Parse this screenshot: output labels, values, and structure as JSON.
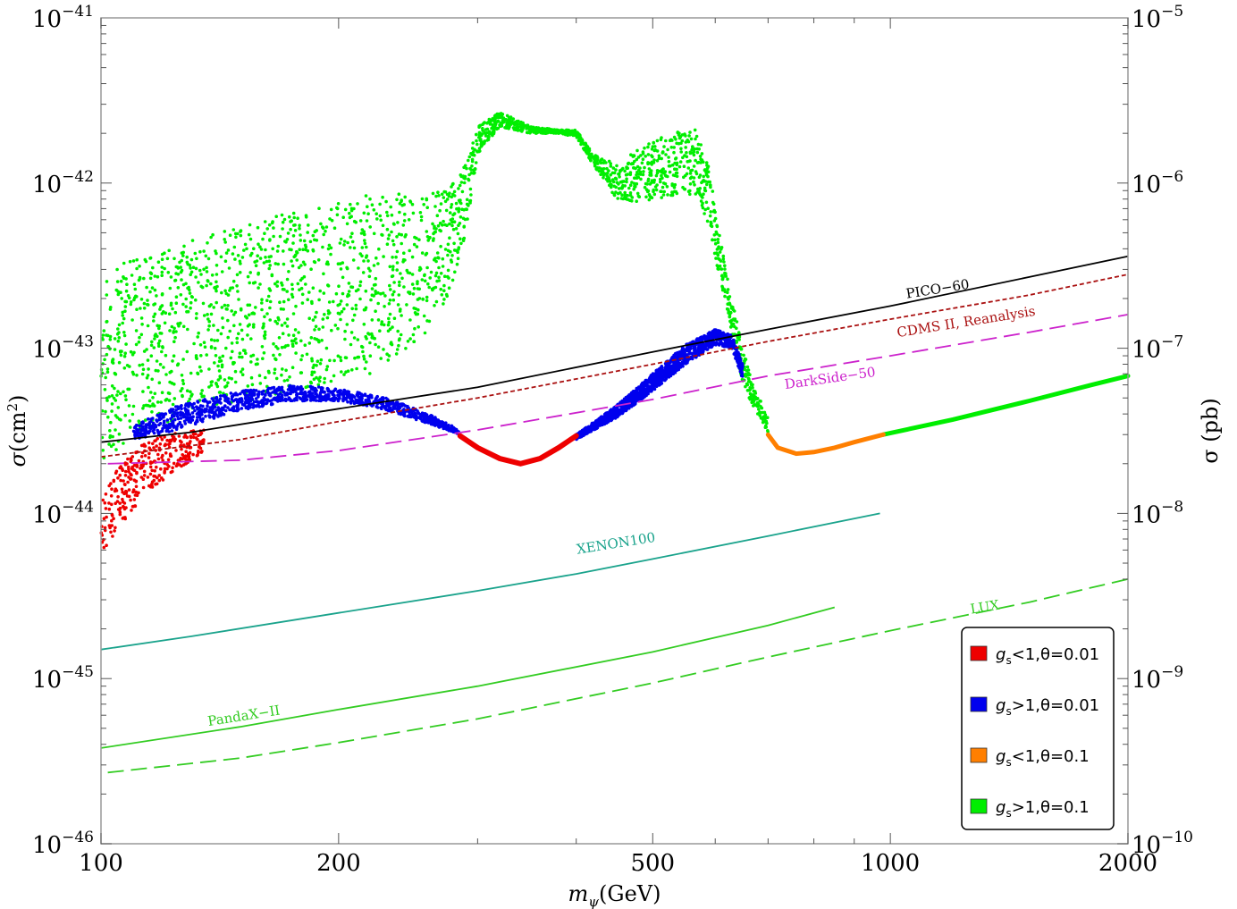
{
  "chart_data": {
    "type": "scatter",
    "title": "",
    "xlabel": {
      "main": "m",
      "sub": "ψ",
      "rest": "(GeV)"
    },
    "ylabel_left": {
      "main": "σ",
      "rest": "(cm",
      "sup": "2",
      "end": ")"
    },
    "ylabel_right": "σ (pb)",
    "x_scale": "log",
    "y_scale": "log",
    "xlim": [
      100,
      2000
    ],
    "ylim": [
      1e-46,
      1e-41
    ],
    "ylim_right": [
      1e-10,
      1e-05
    ],
    "x_ticks": [
      {
        "value": 100,
        "label": "100"
      },
      {
        "value": 200,
        "label": "200"
      },
      {
        "value": 500,
        "label": "500"
      },
      {
        "value": 1000,
        "label": "1000"
      },
      {
        "value": 2000,
        "label": "2000"
      }
    ],
    "y_ticks_left": [
      {
        "value": 1e-46,
        "base": "10",
        "exp": "−46"
      },
      {
        "value": 1e-45,
        "base": "10",
        "exp": "−45"
      },
      {
        "value": 1e-44,
        "base": "10",
        "exp": "−44"
      },
      {
        "value": 1e-43,
        "base": "10",
        "exp": "−43"
      },
      {
        "value": 1e-42,
        "base": "10",
        "exp": "−42"
      },
      {
        "value": 1e-41,
        "base": "10",
        "exp": "−41"
      }
    ],
    "y_ticks_right": [
      {
        "value": 1e-10,
        "base": "10",
        "exp": "−10"
      },
      {
        "value": 1e-09,
        "base": "10",
        "exp": "−9"
      },
      {
        "value": 1e-08,
        "base": "10",
        "exp": "−8"
      },
      {
        "value": 1e-07,
        "base": "10",
        "exp": "−7"
      },
      {
        "value": 1e-06,
        "base": "10",
        "exp": "−6"
      },
      {
        "value": 1e-05,
        "base": "10",
        "exp": "−5"
      }
    ],
    "grid": false,
    "legend_position": "bottom-right",
    "legend": [
      {
        "key": "red",
        "color": "#ee0000",
        "g": "g",
        "sub": "s",
        "text": "<1,θ=0.01"
      },
      {
        "key": "blue",
        "color": "#0000ee",
        "g": "g",
        "sub": "s",
        "text": ">1,θ=0.01"
      },
      {
        "key": "orange",
        "color": "#ff7f00",
        "g": "g",
        "sub": "s",
        "text": "<1,θ=0.1"
      },
      {
        "key": "green",
        "color": "#00ee00",
        "g": "g",
        "sub": "s",
        "text": ">1,θ=0.1"
      }
    ],
    "limit_curves": [
      {
        "name": "PICO−60",
        "color": "#000000",
        "dash": "solid",
        "x": [
          100,
          130,
          200,
          300,
          500,
          700,
          1000,
          1500,
          2000
        ],
        "y": [
          2.7e-44,
          3.1e-44,
          4.3e-44,
          5.8e-44,
          9.5e-44,
          1.3e-43,
          1.8e-43,
          2.7e-43,
          3.6e-43
        ],
        "label_at": [
          1150,
          2.15e-43
        ],
        "label_angle": -9
      },
      {
        "name": "CDMS II, Reanalysis",
        "color": "#aa1111",
        "dash": "dashed-short",
        "x": [
          100,
          150,
          200,
          300,
          500,
          700,
          1000,
          1500,
          2000
        ],
        "y": [
          2.2e-44,
          2.8e-44,
          3.6e-44,
          5e-44,
          8e-44,
          1.1e-43,
          1.5e-43,
          2.1e-43,
          2.8e-43
        ],
        "label_at": [
          1250,
          1.36e-43
        ],
        "label_angle": -9
      },
      {
        "name": "DarkSide−50",
        "color": "#cc22cc",
        "dash": "dashed-long",
        "x": [
          102,
          150,
          200,
          300,
          500,
          700,
          1000,
          1500,
          2000
        ],
        "y": [
          2e-44,
          2.1e-44,
          2.4e-44,
          3.2e-44,
          4.9e-44,
          6.8e-44,
          9e-44,
          1.25e-43,
          1.6e-43
        ],
        "label_at": [
          840,
          6.2e-44
        ],
        "label_angle": -8
      },
      {
        "name": "XENON100",
        "color": "#1aa38c",
        "dash": "solid",
        "x": [
          100,
          130,
          200,
          300,
          400,
          500,
          700,
          970
        ],
        "y": [
          1.5e-45,
          1.8e-45,
          2.5e-45,
          3.4e-45,
          4.3e-45,
          5.3e-45,
          7.3e-45,
          1e-44
        ],
        "label_at": [
          450,
          6.2e-45
        ],
        "label_angle": -9
      },
      {
        "name": "PandaX−II",
        "color": "#33cc22",
        "dash": "solid",
        "x": [
          100,
          150,
          200,
          300,
          500,
          700,
          850
        ],
        "y": [
          3.8e-46,
          5.1e-46,
          6.5e-46,
          9e-46,
          1.45e-45,
          2.1e-45,
          2.7e-45
        ],
        "label_at": [
          152,
          5.6e-46
        ],
        "label_angle": -9
      },
      {
        "name": "LUX",
        "color": "#33cc22",
        "dash": "dashed-long",
        "x": [
          102,
          150,
          200,
          300,
          500,
          700,
          1000,
          1500,
          2000
        ],
        "y": [
          2.7e-46,
          3.3e-46,
          4.1e-46,
          5.7e-46,
          9.4e-46,
          1.35e-45,
          1.95e-45,
          2.9e-45,
          4e-45
        ],
        "label_at": [
          1320,
          2.55e-45
        ],
        "label_angle": -9
      }
    ],
    "dm_model_regions": [
      {
        "group": "green",
        "kind": "band",
        "x": [
          100,
          110,
          130,
          160,
          190,
          220,
          250,
          275,
          290,
          300,
          320,
          350,
          380,
          400,
          420,
          450,
          480,
          510,
          550,
          570,
          590,
          610,
          630,
          650,
          670,
          690,
          700
        ],
        "ylow": [
          2e-44,
          3e-44,
          4e-44,
          5e-44,
          6e-44,
          7e-44,
          1e-43,
          2e-43,
          5e-43,
          1.5e-42,
          2.2e-42,
          2e-42,
          2e-42,
          1.9e-42,
          1.3e-42,
          8e-43,
          7.5e-43,
          8e-43,
          8.5e-43,
          8.5e-43,
          5e-43,
          2.5e-43,
          1.2e-43,
          6e-44,
          4.5e-44,
          3.5e-44,
          3e-44
        ],
        "yhigh": [
          2.8e-43,
          3.5e-43,
          4.5e-43,
          6e-43,
          7.5e-43,
          8.5e-43,
          8.7e-43,
          8.9e-43,
          1.3e-42,
          2.2e-42,
          2.7e-42,
          2.2e-42,
          2.1e-42,
          2.1e-42,
          1.5e-42,
          1.3e-42,
          1.6e-42,
          1.9e-42,
          2.1e-42,
          2.1e-42,
          1.2e-42,
          4.5e-43,
          2e-43,
          1e-43,
          6e-44,
          4.5e-44,
          3.8e-44
        ],
        "density": 2600
      },
      {
        "group": "green",
        "kind": "line",
        "x": [
          980,
          1200,
          1500,
          1800,
          2000
        ],
        "y": [
          3e-44,
          3.7e-44,
          4.8e-44,
          6e-44,
          6.8e-44
        ],
        "width": 5
      },
      {
        "group": "blue",
        "kind": "band",
        "x": [
          110,
          125,
          150,
          175,
          200,
          230,
          260,
          285
        ],
        "ylow": [
          2.8e-44,
          3.2e-44,
          4.2e-44,
          4.8e-44,
          4.8e-44,
          4.2e-44,
          3.5e-44,
          3e-44
        ],
        "yhigh": [
          3.4e-44,
          4.5e-44,
          5.5e-44,
          6e-44,
          5.7e-44,
          5e-44,
          4e-44,
          3.2e-44
        ],
        "density": 1100
      },
      {
        "group": "blue",
        "kind": "band",
        "x": [
          400,
          450,
          500,
          550,
          600,
          630,
          650
        ],
        "ylow": [
          2.8e-44,
          3.8e-44,
          5.5e-44,
          8e-44,
          1.05e-43,
          1e-43,
          6.5e-44
        ],
        "yhigh": [
          3e-44,
          4.5e-44,
          7e-44,
          1.05e-43,
          1.3e-43,
          1.2e-43,
          8e-44
        ],
        "density": 1500
      },
      {
        "group": "red",
        "kind": "band",
        "x": [
          100,
          105,
          112,
          120,
          130,
          135
        ],
        "ylow": [
          5.5e-45,
          8e-45,
          1.2e-44,
          1.6e-44,
          2.1e-44,
          2.4e-44
        ],
        "yhigh": [
          1.2e-44,
          1.9e-44,
          2.6e-44,
          3e-44,
          3.2e-44,
          3.2e-44
        ],
        "density": 320
      },
      {
        "group": "red",
        "kind": "line",
        "x": [
          285,
          300,
          320,
          340,
          360,
          380,
          400
        ],
        "y": [
          2.95e-44,
          2.5e-44,
          2.15e-44,
          2e-44,
          2.15e-44,
          2.5e-44,
          2.95e-44
        ],
        "width": 6
      },
      {
        "group": "orange",
        "kind": "line",
        "x": [
          700,
          720,
          760,
          800,
          850,
          900,
          980
        ],
        "y": [
          3e-44,
          2.5e-44,
          2.3e-44,
          2.35e-44,
          2.5e-44,
          2.7e-44,
          3e-44
        ],
        "width": 5
      }
    ]
  }
}
